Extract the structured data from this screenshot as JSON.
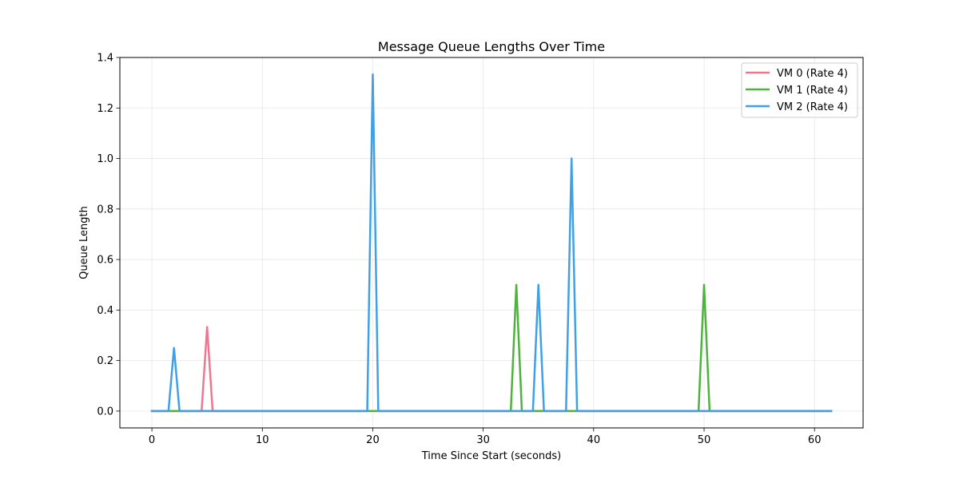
{
  "chart_data": {
    "type": "line",
    "title": "Message Queue Lengths Over Time",
    "xlabel": "Time Since Start (seconds)",
    "ylabel": "Queue Length",
    "xlim": [
      -2.9,
      64.4
    ],
    "ylim": [
      -0.0667,
      1.4
    ],
    "xticks": [
      0,
      10,
      20,
      30,
      40,
      50,
      60
    ],
    "yticks": [
      0.0,
      0.2,
      0.4,
      0.6,
      0.8,
      1.0,
      1.2,
      1.4
    ],
    "ytick_labels": [
      "0.0",
      "0.2",
      "0.4",
      "0.6",
      "0.8",
      "1.0",
      "1.2",
      "1.4"
    ],
    "grid": true,
    "legend_position": "top-right",
    "series": [
      {
        "name": "VM 0 (Rate 4)",
        "color": "#f0768f",
        "x": [
          0,
          4.5,
          5,
          5.5,
          61.5
        ],
        "y": [
          0,
          0,
          0.333,
          0,
          0
        ]
      },
      {
        "name": "VM 1 (Rate 4)",
        "color": "#4db33d",
        "x": [
          0,
          32.5,
          33,
          33.5,
          49.5,
          50,
          50.5,
          61.5
        ],
        "y": [
          0,
          0,
          0.5,
          0,
          0,
          0.5,
          0,
          0
        ]
      },
      {
        "name": "VM 2 (Rate 4)",
        "color": "#3fa0e6",
        "x": [
          0,
          1.5,
          2,
          2.5,
          19.5,
          20,
          20.5,
          34.5,
          35,
          35.5,
          37.5,
          38,
          38.5,
          61.5
        ],
        "y": [
          0,
          0,
          0.25,
          0,
          0,
          1.333,
          0,
          0,
          0.5,
          0,
          0,
          1.0,
          0,
          0
        ]
      }
    ]
  }
}
